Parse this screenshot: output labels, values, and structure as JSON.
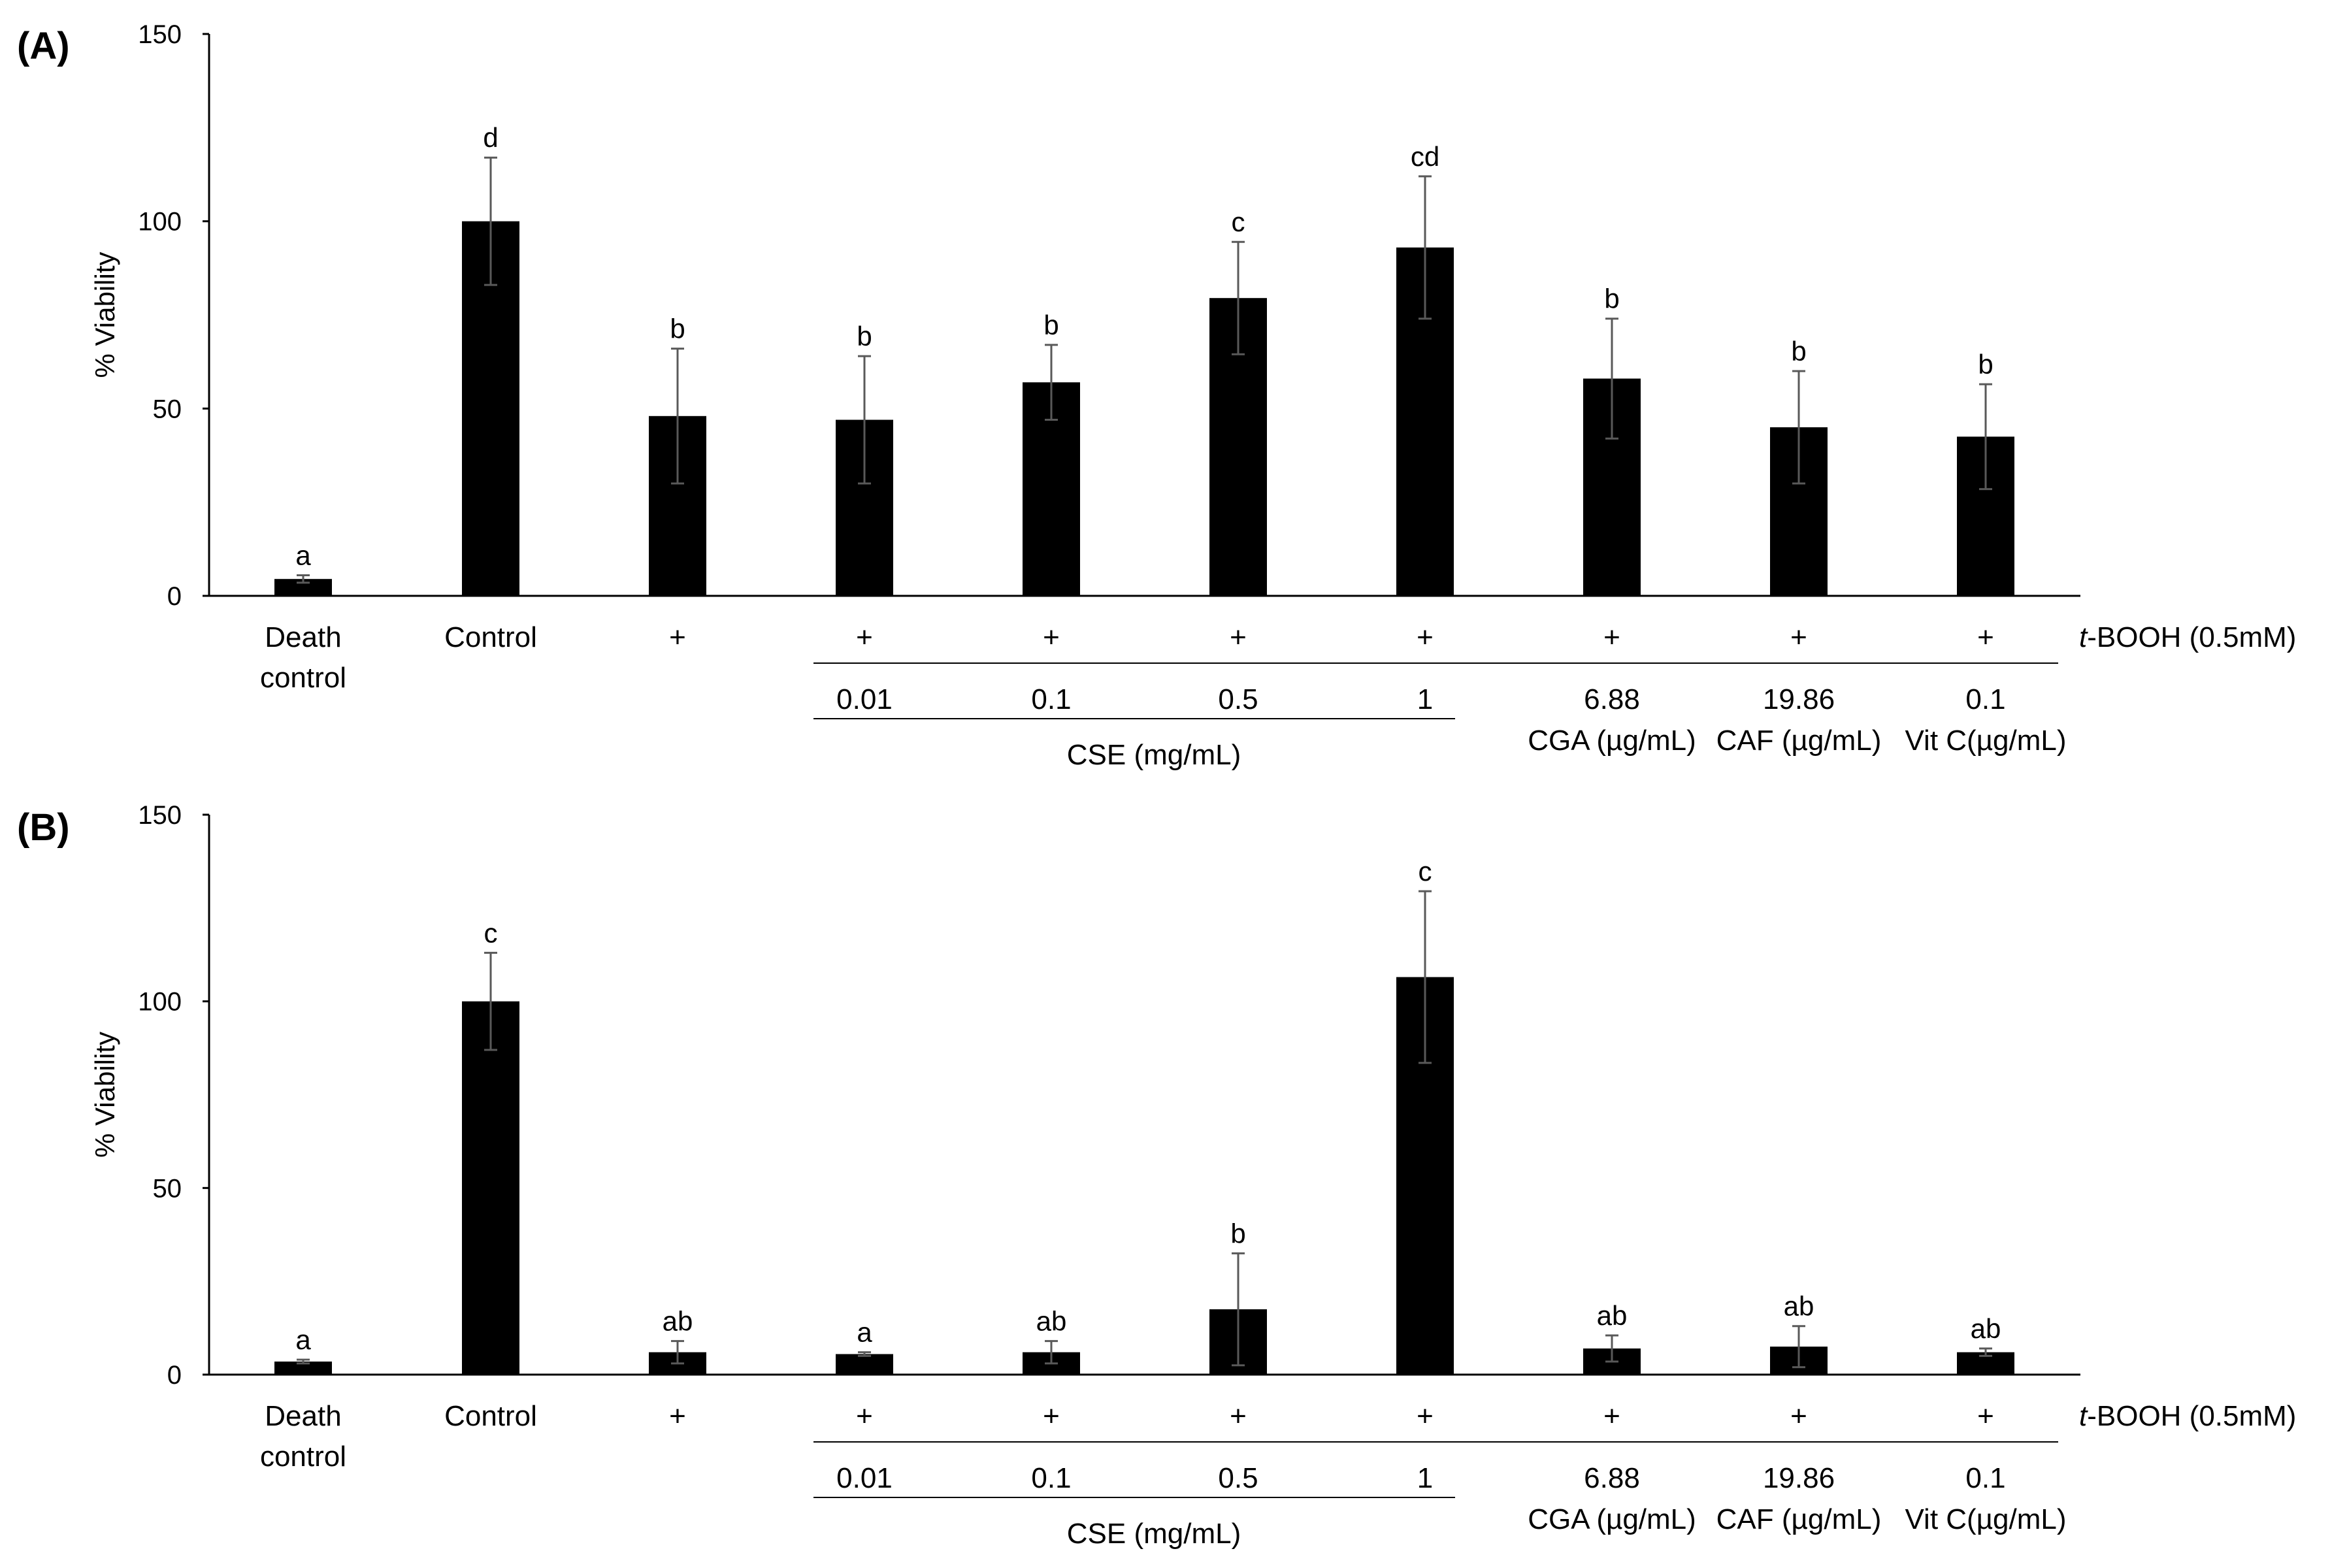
{
  "chart_data": [
    {
      "type": "bar",
      "panel_label": "(A)",
      "ylabel": "% Viability",
      "ylim": [
        0,
        150
      ],
      "yticks": [
        "0",
        "50",
        "100",
        "150"
      ],
      "grid": false,
      "bar_color": "#000000",
      "errorbar_color": "#595959",
      "group_labels": [
        "Death control",
        "Control",
        "+",
        "+",
        "+",
        "+",
        "+",
        "+",
        "+",
        "+"
      ],
      "values": [
        4.5,
        100,
        48,
        47,
        57,
        79.5,
        93,
        58,
        45,
        42.5
      ],
      "errors": [
        1,
        17,
        18,
        17,
        10,
        15,
        19,
        16,
        15,
        14
      ],
      "letters": [
        "a",
        "d",
        "b",
        "b",
        "b",
        "c",
        "cd",
        "b",
        "b",
        "b"
      ],
      "treatment": {
        "prefix": "t",
        "rest": "-BOOH (0.5mM)"
      },
      "doses": [
        "0.01",
        "0.1",
        "0.5",
        "1",
        "6.88",
        "19.86",
        "0.1"
      ],
      "dose_units": [
        "CSE (mg/mL)",
        "CGA (µg/mL)",
        "CAF (µg/mL)",
        "Vit C(µg/mL)"
      ]
    },
    {
      "type": "bar",
      "panel_label": "(B)",
      "ylabel": "% Viability",
      "ylim": [
        0,
        150
      ],
      "yticks": [
        "0",
        "50",
        "100",
        "150"
      ],
      "grid": false,
      "bar_color": "#000000",
      "errorbar_color": "#595959",
      "group_labels": [
        "Death control",
        "Control",
        "+",
        "+",
        "+",
        "+",
        "+",
        "+",
        "+",
        "+"
      ],
      "values": [
        3.5,
        100,
        6,
        5.5,
        6,
        17.5,
        106.5,
        7,
        7.5,
        6
      ],
      "errors": [
        0.5,
        13,
        3,
        0.5,
        3,
        15,
        23,
        3.5,
        5.5,
        1
      ],
      "letters": [
        "a",
        "c",
        "ab",
        "a",
        "ab",
        "b",
        "c",
        "ab",
        "ab",
        "ab"
      ],
      "treatment": {
        "prefix": "t",
        "rest": "-BOOH (0.5mM)"
      },
      "doses": [
        "0.01",
        "0.1",
        "0.5",
        "1",
        "6.88",
        "19.86",
        "0.1"
      ],
      "dose_units": [
        "CSE (mg/mL)",
        "CGA (µg/mL)",
        "CAF (µg/mL)",
        "Vit C(µg/mL)"
      ]
    }
  ]
}
